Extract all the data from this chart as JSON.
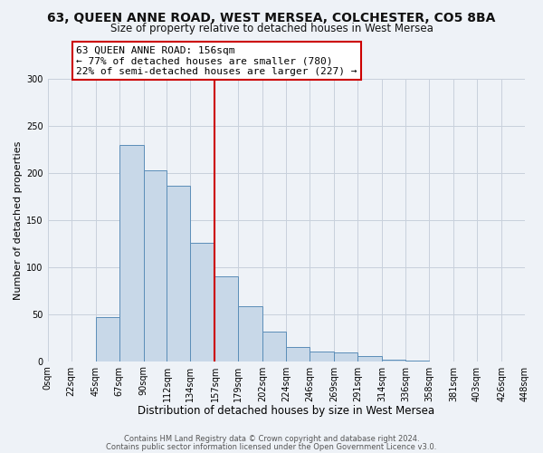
{
  "title": "63, QUEEN ANNE ROAD, WEST MERSEA, COLCHESTER, CO5 8BA",
  "subtitle": "Size of property relative to detached houses in West Mersea",
  "xlabel": "Distribution of detached houses by size in West Mersea",
  "ylabel": "Number of detached properties",
  "footnote1": "Contains HM Land Registry data © Crown copyright and database right 2024.",
  "footnote2": "Contains public sector information licensed under the Open Government Licence v3.0.",
  "bin_labels": [
    "0sqm",
    "22sqm",
    "45sqm",
    "67sqm",
    "90sqm",
    "112sqm",
    "134sqm",
    "157sqm",
    "179sqm",
    "202sqm",
    "224sqm",
    "246sqm",
    "269sqm",
    "291sqm",
    "314sqm",
    "336sqm",
    "358sqm",
    "381sqm",
    "403sqm",
    "426sqm",
    "448sqm"
  ],
  "bin_edges": [
    0,
    22,
    45,
    67,
    90,
    112,
    134,
    157,
    179,
    202,
    224,
    246,
    269,
    291,
    314,
    336,
    358,
    381,
    403,
    426,
    448
  ],
  "bar_heights": [
    0,
    0,
    47,
    230,
    203,
    186,
    126,
    90,
    58,
    31,
    15,
    10,
    9,
    5,
    2,
    1,
    0,
    0,
    0,
    0
  ],
  "bar_color": "#c8d8e8",
  "bar_edge_color": "#5b8db8",
  "vline_x": 157,
  "vline_color": "#cc0000",
  "annotation_title": "63 QUEEN ANNE ROAD: 156sqm",
  "annotation_line1": "← 77% of detached houses are smaller (780)",
  "annotation_line2": "22% of semi-detached houses are larger (227) →",
  "annotation_box_color": "#ffffff",
  "annotation_box_edge": "#cc0000",
  "ylim": [
    0,
    300
  ],
  "yticks": [
    0,
    50,
    100,
    150,
    200,
    250,
    300
  ],
  "background_color": "#eef2f7",
  "plot_background": "#eef2f7",
  "grid_color": "#c8d0dc",
  "title_fontsize": 10,
  "subtitle_fontsize": 8.5,
  "ylabel_fontsize": 8,
  "xlabel_fontsize": 8.5,
  "tick_fontsize": 7,
  "footnote_fontsize": 6
}
